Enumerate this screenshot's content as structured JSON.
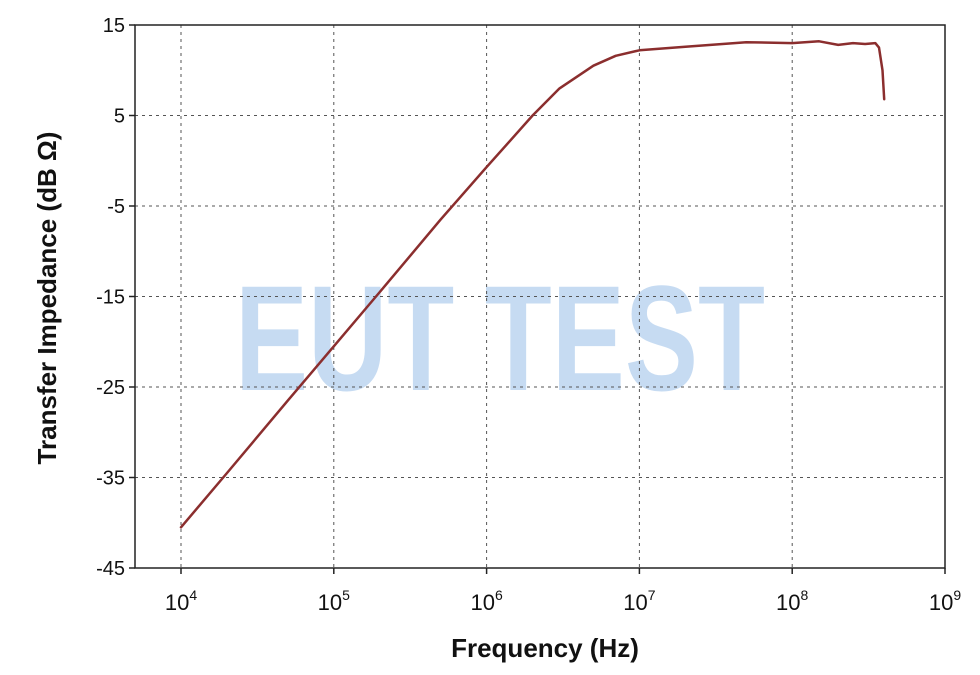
{
  "chart_data": {
    "type": "line",
    "title": "",
    "xlabel": "Frequency (Hz)",
    "ylabel": "Transfer Impedance (dB Ω)",
    "xscale": "log",
    "xlim": [
      5000,
      1000000000
    ],
    "ylim": [
      -45,
      15
    ],
    "grid": true,
    "x_tick_labels": [
      {
        "base": "10",
        "exp": "4"
      },
      {
        "base": "10",
        "exp": "5"
      },
      {
        "base": "10",
        "exp": "6"
      },
      {
        "base": "10",
        "exp": "7"
      },
      {
        "base": "10",
        "exp": "8"
      },
      {
        "base": "10",
        "exp": "9"
      }
    ],
    "x_tick_values": [
      10000,
      100000,
      1000000,
      10000000,
      100000000,
      1000000000
    ],
    "y_tick_labels": [
      "15",
      "5",
      "-5",
      "-15",
      "-25",
      "-35",
      "-45"
    ],
    "y_tick_values": [
      15,
      5,
      -5,
      -15,
      -25,
      -35,
      -45
    ],
    "series": [
      {
        "color": "#8b2e2e",
        "x": [
          10000,
          20000,
          50000,
          100000,
          200000,
          500000,
          1000000,
          2000000,
          3000000,
          5000000,
          7000000,
          10000000,
          20000000,
          50000000,
          100000000,
          150000000,
          200000000,
          250000000,
          300000000,
          350000000,
          370000000,
          390000000,
          400000000
        ],
        "y": [
          -40.5,
          -34.5,
          -26.5,
          -20.5,
          -14.5,
          -6.5,
          -0.7,
          5.0,
          8.0,
          10.5,
          11.6,
          12.2,
          12.6,
          13.1,
          13.0,
          13.2,
          12.8,
          13.0,
          12.9,
          13.0,
          12.5,
          10.0,
          6.8
        ]
      }
    ]
  },
  "watermark": "EUT TEST"
}
